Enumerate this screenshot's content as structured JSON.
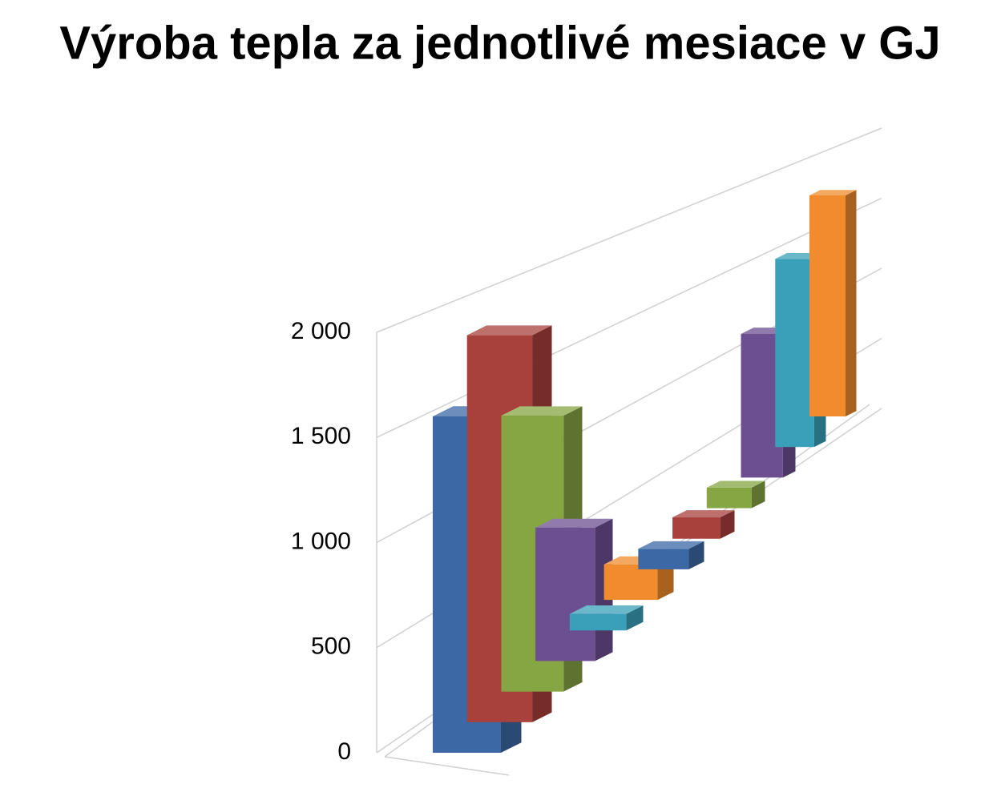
{
  "chart_data": {
    "type": "bar3d",
    "title": "Výroba tepla za jednotlivé mesiace v GJ",
    "categories": [
      null,
      null,
      null,
      null,
      null,
      null,
      null,
      null,
      null,
      null,
      null,
      null
    ],
    "values": [
      1600,
      1900,
      1400,
      700,
      90,
      200,
      120,
      130,
      130,
      950,
      1300,
      1600
    ],
    "colors": [
      "#3c68a5",
      "#a8403c",
      "#86a543",
      "#6c4f91",
      "#3aa0ba",
      "#f08c2e",
      "#3c68a5",
      "#a8403c",
      "#86a543",
      "#6c4f91",
      "#3aa0ba",
      "#f08c2e"
    ],
    "ylim": [
      0,
      2000
    ],
    "yticks": [
      0,
      500,
      {
        "value": 1000,
        "label": "1 000"
      },
      {
        "value": 1500,
        "label": "1 500"
      },
      {
        "value": 2000,
        "label": "2 000"
      }
    ],
    "grid": true
  }
}
